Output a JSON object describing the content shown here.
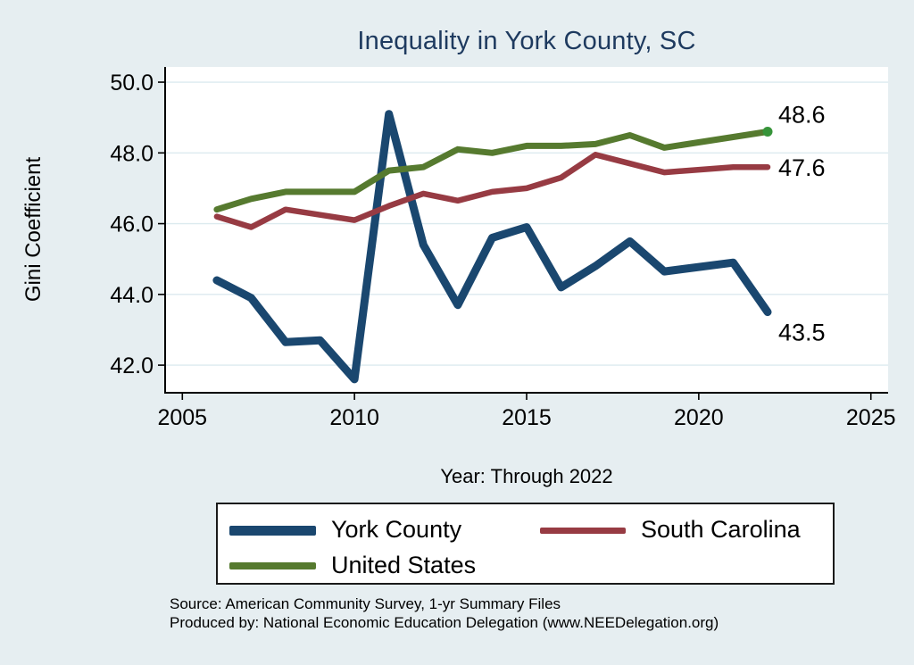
{
  "title": "Inequality in York County, SC",
  "axes": {
    "y_label": "Gini Coefficient",
    "x_label": "Year: Through 2022"
  },
  "chart_data": {
    "type": "line",
    "title": "Inequality in York County, SC",
    "xlabel": "Year: Through 2022",
    "ylabel": "Gini Coefficient",
    "x": [
      2006,
      2007,
      2008,
      2009,
      2010,
      2011,
      2012,
      2013,
      2014,
      2015,
      2016,
      2017,
      2018,
      2019,
      2021,
      2022
    ],
    "series": [
      {
        "name": "York County",
        "color": "#1a476f",
        "width": 9,
        "values": [
          44.4,
          43.9,
          42.65,
          42.7,
          41.6,
          49.1,
          45.4,
          43.7,
          45.6,
          45.9,
          44.2,
          44.8,
          45.5,
          44.65,
          44.9,
          43.5
        ],
        "end_label": "43.5"
      },
      {
        "name": "South Carolina",
        "color": "#973b43",
        "width": 6.5,
        "values": [
          46.2,
          45.9,
          46.4,
          46.25,
          46.1,
          46.5,
          46.85,
          46.65,
          46.9,
          47.0,
          47.3,
          47.95,
          47.7,
          47.45,
          47.6,
          47.6
        ],
        "end_label": "47.6"
      },
      {
        "name": "United States",
        "color": "#567a2f",
        "width": 7,
        "values": [
          46.4,
          46.7,
          46.9,
          46.9,
          46.9,
          47.5,
          47.6,
          48.1,
          48.0,
          48.2,
          48.2,
          48.25,
          48.5,
          48.15,
          48.45,
          48.6
        ],
        "end_label": "48.6",
        "end_dot_color": "#37943a"
      }
    ],
    "xlim": [
      2004.5,
      2025.5
    ],
    "ylim": [
      41.22,
      50.43
    ],
    "xticks": [
      "2005",
      "2010",
      "2015",
      "2020",
      "2025"
    ],
    "yticks": [
      "42.0",
      "44.0",
      "46.0",
      "48.0",
      "50.0"
    ],
    "grid": true,
    "legend_position": "bottom"
  },
  "colors": {
    "background": "#e6eef1",
    "plot_background": "#ffffff",
    "gridline": "#dceaef",
    "axis": "#000000",
    "title": "#1e3a5f"
  },
  "source": {
    "line1": "Source: American Community Survey, 1-yr Summary Files",
    "line2": "Produced by: National Economic Education Delegation (www.NEEDelegation.org)"
  }
}
